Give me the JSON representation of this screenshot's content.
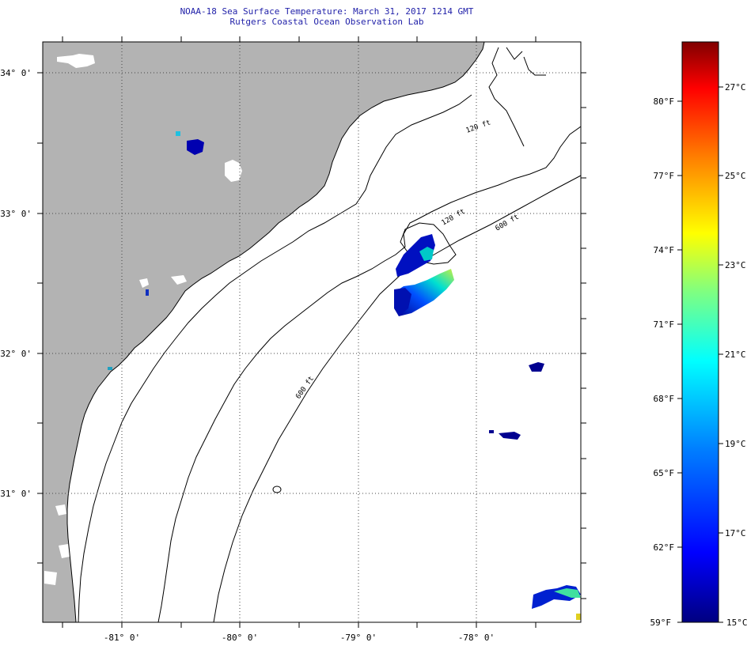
{
  "header": {
    "title": "NOAA-18 Sea Surface Temperature:  March 31, 2017 1214 GMT",
    "subtitle": "Rutgers Coastal Ocean Observation Lab"
  },
  "map": {
    "lon_labels": [
      "-81° 0'",
      "-80° 0'",
      "-79° 0'",
      "-78° 0'"
    ],
    "lat_labels": [
      "34° 0'",
      "33° 0'",
      "32° 0'",
      "31° 0'"
    ],
    "isobath_labels": [
      "120 ft",
      "600 ft",
      "600 ft",
      "120 ft"
    ],
    "colors": {
      "land": "#b3b3b3",
      "ocean": "#ffffff",
      "coast": "#000000"
    }
  },
  "colorbar": {
    "fahrenheit_labels": [
      "80°F",
      "77°F",
      "74°F",
      "71°F",
      "68°F",
      "65°F",
      "62°F",
      "59°F"
    ],
    "celsius_labels": [
      "27°C",
      "25°C",
      "23°C",
      "21°C",
      "19°C",
      "17°C",
      "15°C"
    ],
    "range_f": [
      59,
      82
    ],
    "range_c": [
      15,
      28
    ],
    "colors": [
      "#000080",
      "#0000ff",
      "#0080ff",
      "#00ffff",
      "#80ff80",
      "#ffff00",
      "#ff8000",
      "#ff0000",
      "#800000"
    ]
  }
}
